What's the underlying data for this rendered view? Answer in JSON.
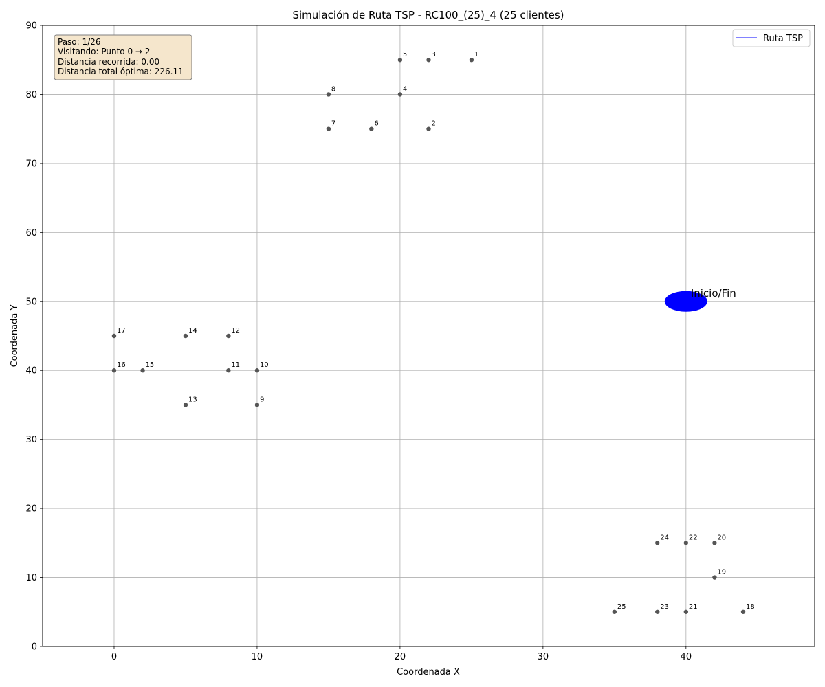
{
  "chart_data": {
    "type": "scatter",
    "title": "Simulación de Ruta TSP - RC100_(25)_4 (25 clientes)",
    "xlabel": "Coordenada X",
    "ylabel": "Coordenada Y",
    "xlim": [
      -5,
      49
    ],
    "ylim": [
      0,
      90
    ],
    "xticks": [
      0,
      10,
      20,
      30,
      40
    ],
    "yticks": [
      0,
      10,
      20,
      30,
      40,
      50,
      60,
      70,
      80,
      90
    ],
    "grid": true,
    "legend": {
      "placement": "top-right",
      "entries": [
        "Ruta TSP"
      ]
    },
    "colors": {
      "route": "#0000ff",
      "depot": "#0000ff",
      "customer": "#555555",
      "info_box_bg": "#f5e6cc",
      "info_box_border": "#7f7f7f"
    },
    "depot": {
      "label": "Inicio/Fin",
      "x": 40,
      "y": 50
    },
    "points": [
      {
        "id": "1",
        "x": 25,
        "y": 85
      },
      {
        "id": "2",
        "x": 22,
        "y": 75
      },
      {
        "id": "3",
        "x": 22,
        "y": 85
      },
      {
        "id": "4",
        "x": 20,
        "y": 80
      },
      {
        "id": "5",
        "x": 20,
        "y": 85
      },
      {
        "id": "6",
        "x": 18,
        "y": 75
      },
      {
        "id": "7",
        "x": 15,
        "y": 75
      },
      {
        "id": "8",
        "x": 15,
        "y": 80
      },
      {
        "id": "9",
        "x": 10,
        "y": 35
      },
      {
        "id": "10",
        "x": 10,
        "y": 40
      },
      {
        "id": "11",
        "x": 8,
        "y": 40
      },
      {
        "id": "12",
        "x": 8,
        "y": 45
      },
      {
        "id": "13",
        "x": 5,
        "y": 35
      },
      {
        "id": "14",
        "x": 5,
        "y": 45
      },
      {
        "id": "15",
        "x": 2,
        "y": 40
      },
      {
        "id": "16",
        "x": 0,
        "y": 40
      },
      {
        "id": "17",
        "x": 0,
        "y": 45
      },
      {
        "id": "18",
        "x": 44,
        "y": 5
      },
      {
        "id": "19",
        "x": 42,
        "y": 10
      },
      {
        "id": "20",
        "x": 42,
        "y": 15
      },
      {
        "id": "21",
        "x": 40,
        "y": 5
      },
      {
        "id": "22",
        "x": 40,
        "y": 15
      },
      {
        "id": "23",
        "x": 38,
        "y": 5
      },
      {
        "id": "24",
        "x": 38,
        "y": 15
      },
      {
        "id": "25",
        "x": 35,
        "y": 5
      }
    ],
    "info_box": [
      "Paso: 1/26",
      "Visitando: Punto 0 → 2",
      "Distancia recorrida: 0.00",
      "Distancia total óptima: 226.11"
    ]
  }
}
